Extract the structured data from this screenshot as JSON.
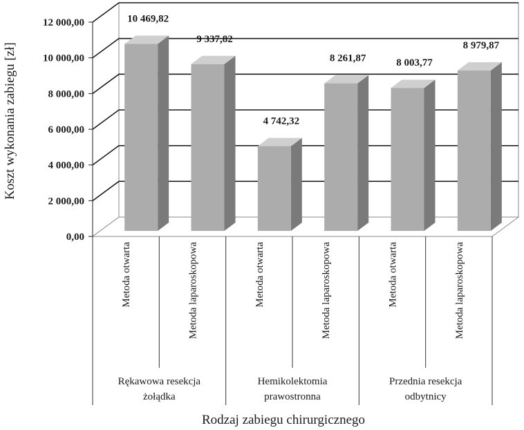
{
  "chart_data": {
    "type": "bar",
    "ylabel": "Koszt wykonania zabiegu [zł]",
    "xlabel": "Rodzaj zabiegu chirurgicznego",
    "ylim": [
      0,
      12000
    ],
    "yticks": [
      0,
      2000,
      4000,
      6000,
      8000,
      10000,
      12000
    ],
    "ytick_labels": [
      "0,00",
      "2 000,00",
      "4 000,00",
      "6 000,00",
      "8 000,00",
      "10 000,00",
      "12 000,00"
    ],
    "grid": true,
    "style": "3d",
    "colors": {
      "bar_front": "#acacac",
      "bar_side": "#7a7a7a",
      "bar_top": "#cfcfcf",
      "wall": "#8a8a8a",
      "gridline": "#1a1a1a"
    },
    "groups": [
      {
        "label_lines": [
          "Rękawowa resekcja",
          "żołądka"
        ]
      },
      {
        "label_lines": [
          "Hemikolektomia",
          "prawostronna"
        ]
      },
      {
        "label_lines": [
          "Przednia resekcja",
          "odbytnicy"
        ]
      }
    ],
    "categories": [
      "Metoda otwarta",
      "Metoda laparoskopowa",
      "Metoda otwarta",
      "Metoda laparoskopowa",
      "Metoda otwarta",
      "Metoda laparoskopowa"
    ],
    "values": [
      10469.82,
      9337.82,
      4742.32,
      8261.87,
      8003.77,
      8979.87
    ],
    "value_labels": [
      "10 469,82",
      "9 337,82",
      "4 742,32",
      "8 261,87",
      "8 003,77",
      "8 979,87"
    ]
  }
}
